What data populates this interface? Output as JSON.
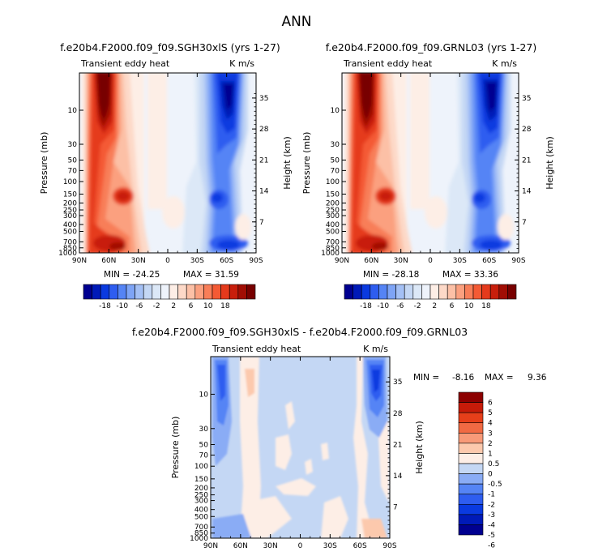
{
  "main_title": "ANN",
  "colors": {
    "diverging_20": [
      "#000090",
      "#001ab8",
      "#0a3ae0",
      "#2e5df0",
      "#5584f5",
      "#7ea4f6",
      "#a4c0f5",
      "#c4d7f4",
      "#dce8f7",
      "#eef3fb",
      "#fdeee6",
      "#fdd9c8",
      "#fcc0a6",
      "#fba07f",
      "#f87e58",
      "#f45a34",
      "#e53a1c",
      "#c81e0c",
      "#a10d04",
      "#780000"
    ],
    "diff_14": [
      "#000090",
      "#001ab8",
      "#0a3ae0",
      "#2e5df0",
      "#5584f5",
      "#8aacf5",
      "#c4d7f4",
      "#fdeee6",
      "#fcc9ad",
      "#f89a78",
      "#f16a43",
      "#e63f1a",
      "#c61b09",
      "#8c0000"
    ]
  },
  "chart_data": [
    {
      "type": "heatmap",
      "id": "panel-sgh",
      "title": "f.e20b4.F2000.f09_f09.SGH30xlS (yrs 1-27)",
      "field_label": "Transient eddy heat",
      "units": "K m/s",
      "ylabel": "Pressure (mb)",
      "y2label": "Height (km)",
      "x_ticks": [
        "90N",
        "60N",
        "30N",
        "0",
        "30S",
        "60S",
        "90S"
      ],
      "p_ticks": [
        "10",
        "30",
        "50",
        "70",
        "100",
        "150",
        "200",
        "250",
        "300",
        "400",
        "500",
        "700",
        "850",
        "1000"
      ],
      "z_ticks": [
        "35",
        "28",
        "21",
        "14",
        "7"
      ],
      "min_label": "MIN = -24.25",
      "max_label": "MAX =  31.59",
      "min": -24.25,
      "max": 31.59,
      "levels": [
        "-18",
        "-10",
        "-6",
        "-2",
        "2",
        "6",
        "10",
        "18"
      ]
    },
    {
      "type": "heatmap",
      "id": "panel-grn",
      "title": "f.e20b4.F2000.f09_f09.GRNL03 (yrs 1-27)",
      "field_label": "Transient eddy heat",
      "units": "K m/s",
      "ylabel": "Pressure (mb)",
      "y2label": "Height (km)",
      "x_ticks": [
        "90N",
        "60N",
        "30N",
        "0",
        "30S",
        "60S",
        "90S"
      ],
      "p_ticks": [
        "10",
        "30",
        "50",
        "70",
        "100",
        "150",
        "200",
        "250",
        "300",
        "400",
        "500",
        "700",
        "850",
        "1000"
      ],
      "z_ticks": [
        "35",
        "28",
        "21",
        "14",
        "7"
      ],
      "min_label": "MIN = -28.18",
      "max_label": "MAX =  33.36",
      "min": -28.18,
      "max": 33.36,
      "levels": [
        "-18",
        "-10",
        "-6",
        "-2",
        "2",
        "6",
        "10",
        "18"
      ]
    },
    {
      "type": "heatmap",
      "id": "panel-diff",
      "title": "f.e20b4.F2000.f09_f09.SGH30xlS - f.e20b4.F2000.f09_f09.GRNL03",
      "field_label": "Transient eddy heat",
      "units": "K m/s",
      "ylabel": "Pressure (mb)",
      "y2label": "Height (km)",
      "x_ticks": [
        "90N",
        "60N",
        "30N",
        "0",
        "30S",
        "60S",
        "90S"
      ],
      "p_ticks": [
        "10",
        "30",
        "50",
        "70",
        "100",
        "150",
        "200",
        "250",
        "300",
        "400",
        "500",
        "700",
        "850",
        "1000"
      ],
      "z_ticks": [
        "35",
        "28",
        "21",
        "14",
        "7"
      ],
      "min_label": "MIN =",
      "min_value": "-8.16",
      "max_label": "MAX =",
      "max_value": "9.36",
      "min": -8.16,
      "max": 9.36,
      "levels": [
        "6",
        "5",
        "4",
        "3",
        "2",
        "1",
        "0.5",
        "0",
        "-0.5",
        "-1",
        "-2",
        "-3",
        "-4",
        "-5",
        "-6"
      ]
    }
  ]
}
